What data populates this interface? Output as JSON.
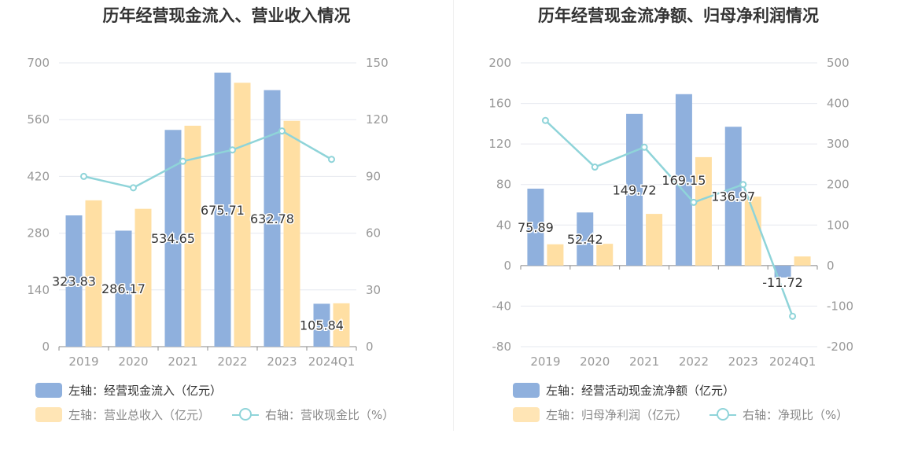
{
  "colors": {
    "cash": "#8fb0dd",
    "revenue": "#ffdfa3",
    "ratio": "#8fd4d9",
    "grid": "#e6e8ef",
    "axis": "#999999"
  },
  "chart_data": [
    {
      "type": "bar",
      "title": "历年经营现金流入、营业收入情况",
      "categories": [
        "2019",
        "2020",
        "2021",
        "2022",
        "2023",
        "2024Q1"
      ],
      "y_left": {
        "min": 0,
        "max": 700,
        "ticks": [
          "0",
          "140",
          "280",
          "420",
          "560",
          "700"
        ]
      },
      "y_right": {
        "min": 0,
        "max": 150,
        "ticks": [
          "0",
          "30",
          "60",
          "90",
          "120",
          "150"
        ]
      },
      "series": [
        {
          "name": "左轴：经营现金流入（亿元）",
          "axis": "left",
          "kind": "bar",
          "values": [
            323.83,
            286.17,
            534.65,
            675.71,
            632.78,
            105.84
          ],
          "labels": [
            "323.83",
            "286.17",
            "534.65",
            "675.71",
            "632.78",
            "105.84"
          ]
        },
        {
          "name": "左轴：营业总收入（亿元）",
          "axis": "left",
          "kind": "bar",
          "values": [
            361,
            340,
            545,
            651,
            557,
            107
          ]
        },
        {
          "name": "右轴：营收现金比（%）",
          "axis": "right",
          "kind": "line",
          "values": [
            90,
            84,
            98,
            104,
            114,
            99
          ]
        }
      ]
    },
    {
      "type": "bar",
      "title": "历年经营现金流净额、归母净利润情况",
      "categories": [
        "2019",
        "2020",
        "2021",
        "2022",
        "2023",
        "2024Q1"
      ],
      "y_left": {
        "min": -80,
        "max": 200,
        "ticks": [
          "-80",
          "-40",
          "0",
          "40",
          "80",
          "120",
          "160",
          "200"
        ]
      },
      "y_right": {
        "min": -200,
        "max": 500,
        "ticks": [
          "-200",
          "-100",
          "0",
          "100",
          "200",
          "300",
          "400",
          "500"
        ]
      },
      "series": [
        {
          "name": "左轴：经营活动现金流净额（亿元）",
          "axis": "left",
          "kind": "bar",
          "values": [
            75.89,
            52.42,
            149.72,
            169.15,
            136.97,
            -11.72
          ],
          "labels": [
            "75.89",
            "52.42",
            "149.72",
            "169.15",
            "136.97",
            "-11.72"
          ]
        },
        {
          "name": "左轴：归母净利润（亿元）",
          "axis": "left",
          "kind": "bar",
          "values": [
            21,
            21.5,
            51,
            107,
            68,
            9
          ]
        },
        {
          "name": "右轴：净现比（%）",
          "axis": "right",
          "kind": "line",
          "values": [
            358,
            243,
            292,
            156,
            200,
            -125
          ]
        }
      ]
    }
  ]
}
